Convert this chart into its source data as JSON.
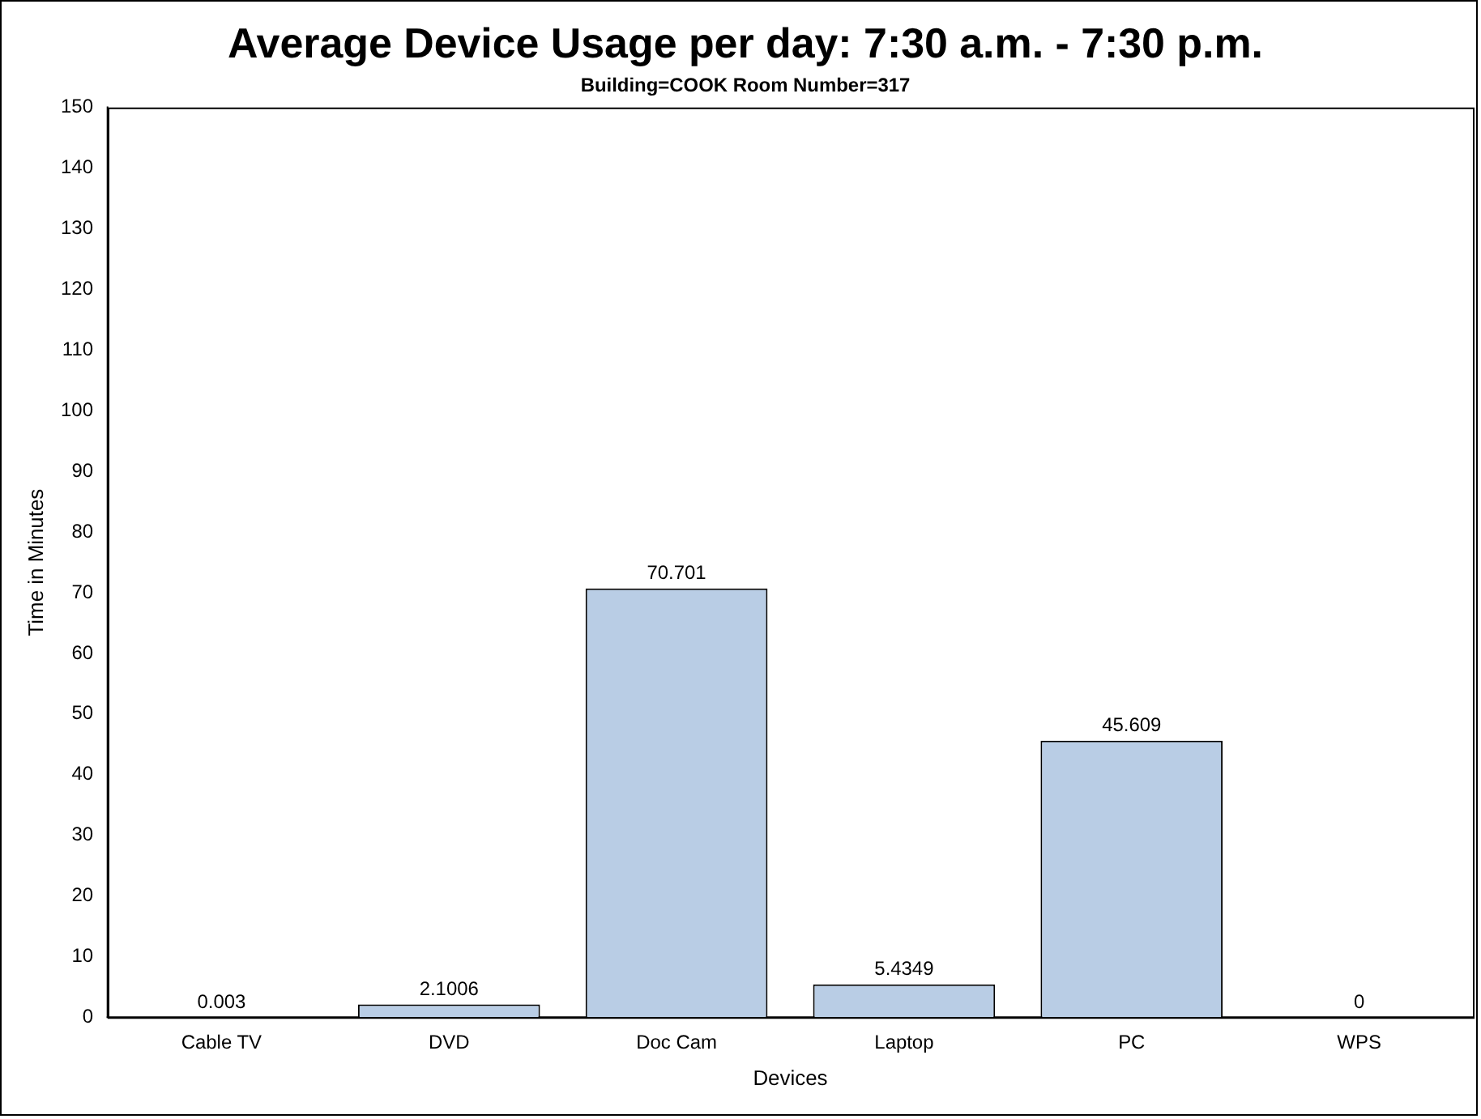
{
  "chart_data": {
    "type": "bar",
    "title": "Average Device Usage per day: 7:30 a.m. - 7:30 p.m.",
    "subtitle": "Building=COOK Room Number=317",
    "xlabel": "Devices",
    "ylabel": "Time in Minutes",
    "categories": [
      "Cable TV",
      "DVD",
      "Doc Cam",
      "Laptop",
      "PC",
      "WPS"
    ],
    "values": [
      0.003,
      2.1006,
      70.701,
      5.4349,
      45.609,
      0
    ],
    "color": "#b9cde5",
    "ylim": [
      0,
      150
    ],
    "yticks": [
      0,
      10,
      20,
      30,
      40,
      50,
      60,
      70,
      80,
      90,
      100,
      110,
      120,
      130,
      140,
      150
    ],
    "grid": false,
    "legend": false,
    "data_labels": true
  }
}
